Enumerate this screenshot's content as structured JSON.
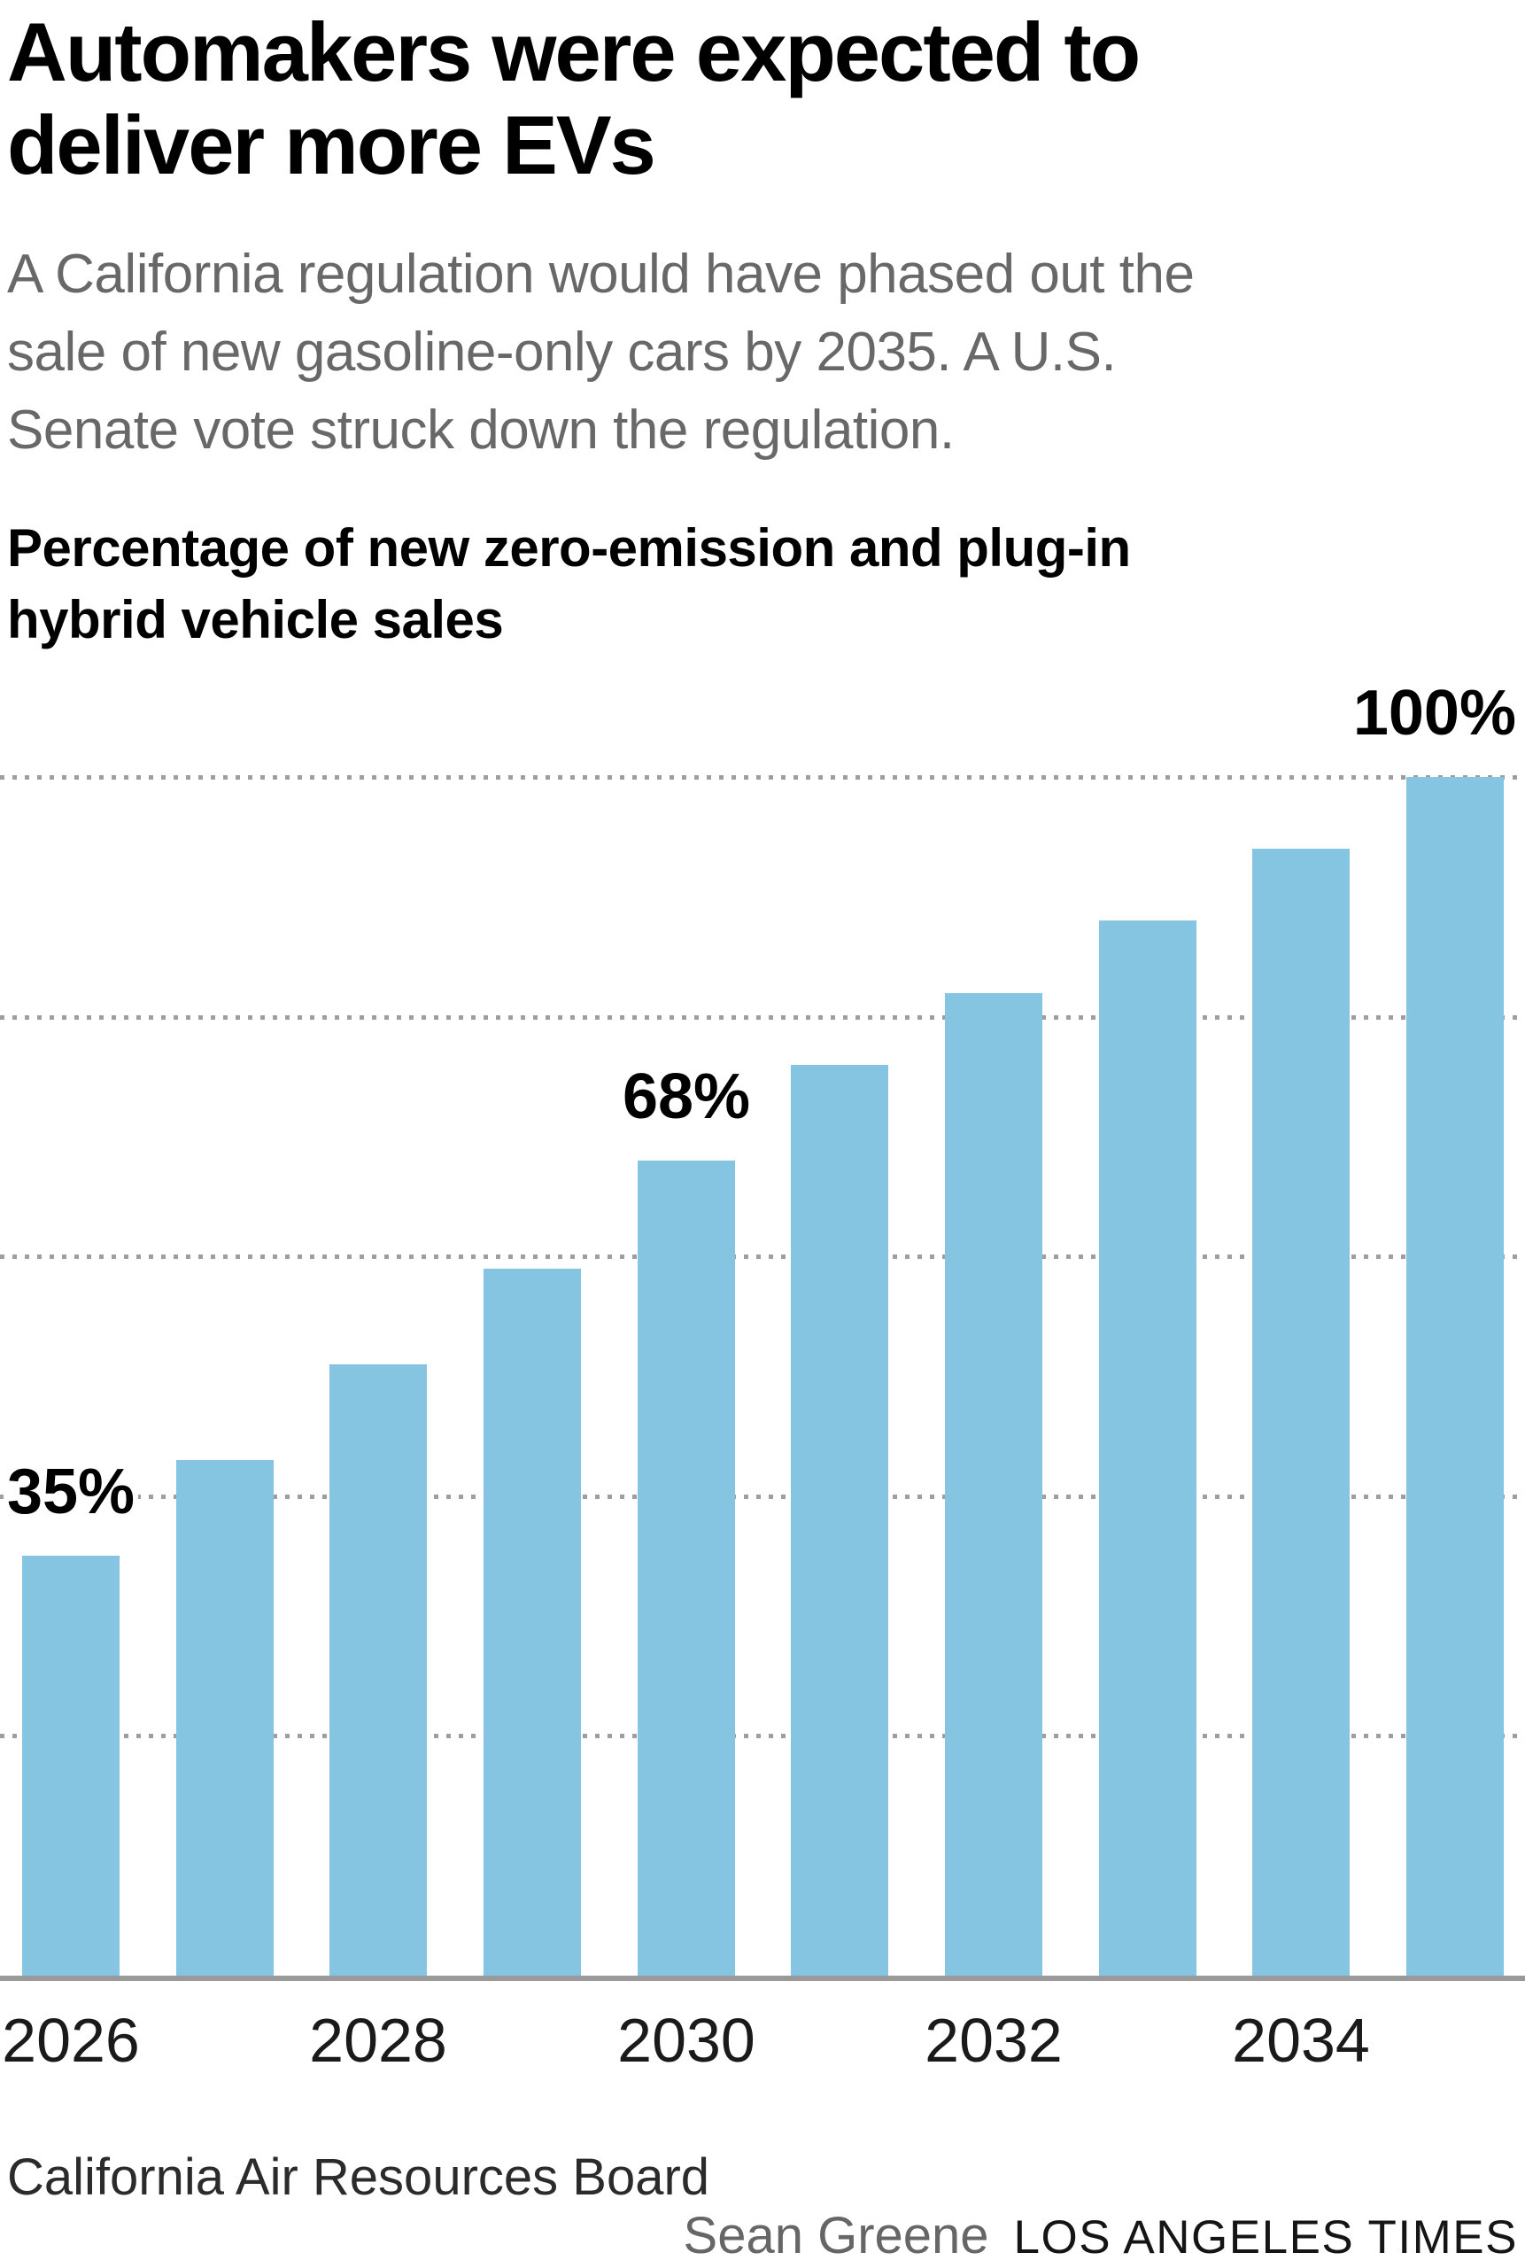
{
  "header": {
    "title": "Automakers were expected to\ndeliver more EVs",
    "subtitle": "A California regulation would have phased out the\nsale of new gasoline-only cars by 2035. A U.S.\nSenate vote struck down the regulation."
  },
  "chart": {
    "label": "Percentage of new zero-emission and plug-in\nhybrid vehicle sales"
  },
  "chart_data": {
    "type": "bar",
    "title": "Automakers were expected to deliver more EVs",
    "subtitle": "A California regulation would have phased out the sale of new gasoline-only cars by 2035. A U.S. Senate vote struck down the regulation.",
    "ylabel": "Percentage of new zero-emission and plug-in hybrid vehicle sales",
    "xlabel": "",
    "categories": [
      "2026",
      "2027",
      "2028",
      "2029",
      "2030",
      "2031",
      "2032",
      "2033",
      "2034",
      "2035"
    ],
    "values": [
      35,
      43,
      51,
      59,
      68,
      76,
      82,
      88,
      94,
      100
    ],
    "unit": "%",
    "ylim": [
      0,
      100
    ],
    "gridlines_pct": [
      20,
      40,
      60,
      80,
      100
    ],
    "grid_style": "dotted",
    "legend": "none",
    "x_tick_labels": [
      "2026",
      "2028",
      "2030",
      "2032",
      "2034"
    ],
    "bar_labels": [
      {
        "category": "2026",
        "text": "35%",
        "anchor": "center"
      },
      {
        "category": "2030",
        "text": "68%",
        "anchor": "center"
      },
      {
        "category": "2035",
        "text": "100%",
        "anchor": "right"
      }
    ]
  },
  "footer": {
    "source": "California Air Resources Board",
    "credit_name": "Sean Greene",
    "credit_org": "LOS ANGELES TIMES"
  },
  "colors": {
    "bar": "#85c5e1",
    "grid": "#9e9e9e",
    "axis": "#9a9a9a",
    "credit_name": "#666666"
  }
}
